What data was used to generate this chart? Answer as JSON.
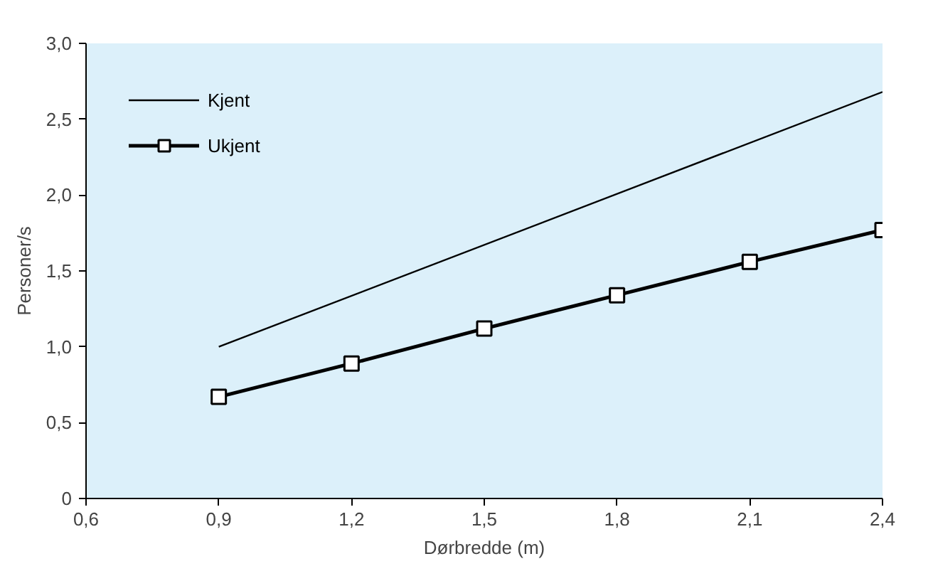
{
  "chart_data": {
    "type": "line",
    "xlabel": "Dørbredde (m)",
    "ylabel": "Personer/s",
    "xlim": [
      0.6,
      2.4
    ],
    "ylim": [
      0,
      3.0
    ],
    "xticks": [
      {
        "value": 0.6,
        "label": "0,6"
      },
      {
        "value": 0.9,
        "label": "0,9"
      },
      {
        "value": 1.2,
        "label": "1,2"
      },
      {
        "value": 1.5,
        "label": "1,5"
      },
      {
        "value": 1.8,
        "label": "1,8"
      },
      {
        "value": 2.1,
        "label": "2,1"
      },
      {
        "value": 2.4,
        "label": "2,4"
      }
    ],
    "yticks": [
      0,
      {
        "value": 0.5,
        "label": "0,5"
      },
      {
        "value": 1.0,
        "label": "1,0"
      },
      {
        "value": 1.5,
        "label": "1,5"
      },
      {
        "value": 2.0,
        "label": "2,0"
      },
      {
        "value": 2.5,
        "label": "2,5"
      },
      {
        "value": 3.0,
        "label": "3,0"
      }
    ],
    "grid": false,
    "legend": "top left",
    "series": [
      {
        "name": "Kjent",
        "color": "#000000",
        "x": [
          0.9,
          2.4
        ],
        "values": [
          1.0,
          2.68
        ],
        "marker": "none"
      },
      {
        "name": "Ukjent",
        "color": "#000000",
        "x": [
          0.9,
          1.2,
          1.5,
          1.8,
          2.1,
          2.4
        ],
        "values": [
          0.67,
          0.89,
          1.12,
          1.34,
          1.56,
          1.77
        ],
        "marker": "square"
      }
    ]
  }
}
